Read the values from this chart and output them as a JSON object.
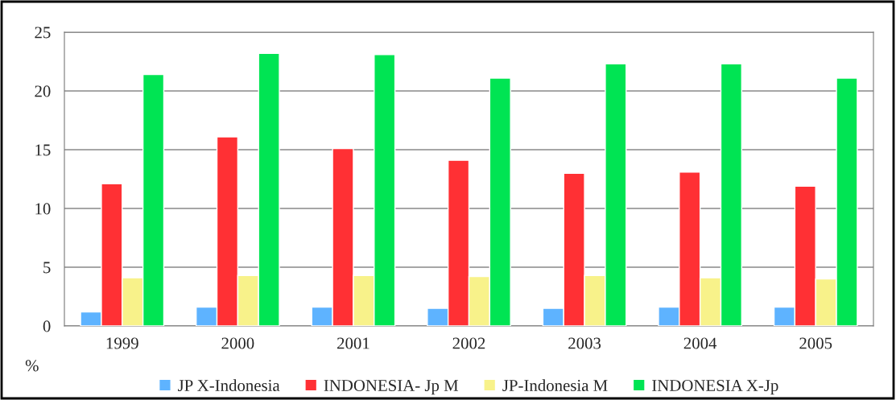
{
  "chart_data": {
    "type": "bar",
    "ylabel": "%",
    "categories": [
      "1999",
      "2000",
      "2001",
      "2002",
      "2003",
      "2004",
      "2005"
    ],
    "series": [
      {
        "name": "JP X-Indonesia",
        "color": "#5eb3ff",
        "values": [
          1.2,
          1.6,
          1.6,
          1.5,
          1.5,
          1.6,
          1.6
        ]
      },
      {
        "name": "INDONESIA- Jp M",
        "color": "#ff3034",
        "values": [
          12.1,
          16.1,
          15.1,
          14.1,
          13.0,
          13.1,
          11.9
        ]
      },
      {
        "name": "JP-Indonesia M",
        "color": "#f8f28a",
        "values": [
          4.1,
          4.3,
          4.3,
          4.2,
          4.3,
          4.1,
          4.0
        ]
      },
      {
        "name": "INDONESIA X-Jp",
        "color": "#00e453",
        "values": [
          21.4,
          23.2,
          23.1,
          21.1,
          22.3,
          22.3,
          21.1
        ]
      }
    ],
    "ylim": [
      0,
      25
    ],
    "yticks": [
      0,
      5,
      10,
      15,
      20,
      25
    ],
    "grid": "y",
    "legend": "bottom"
  }
}
